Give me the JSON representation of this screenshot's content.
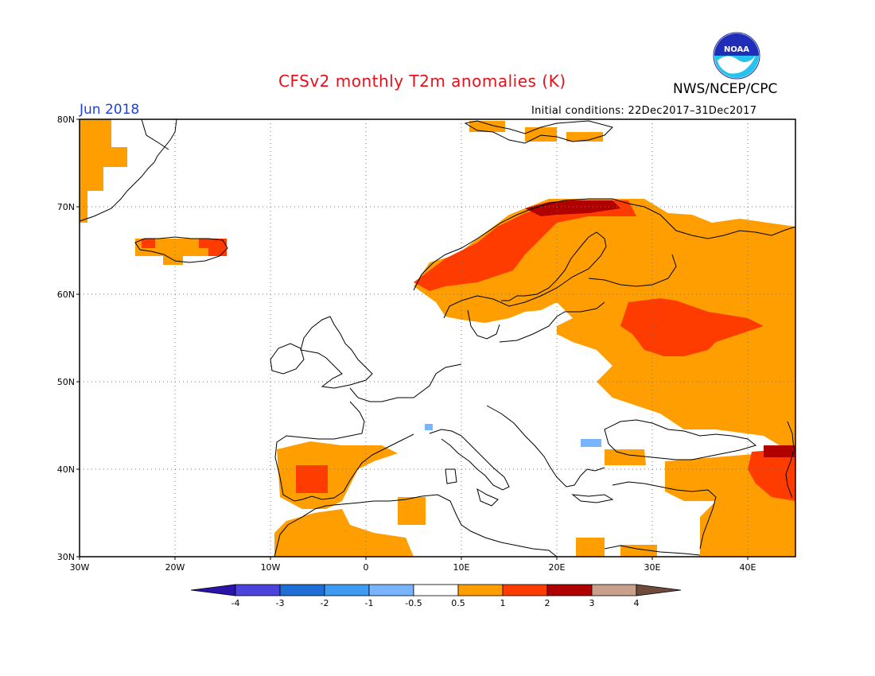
{
  "header": {
    "title": "CFSv2 monthly T2m anomalies (K)",
    "agency": "NWS/NCEP/CPC",
    "logo_text": "NOAA",
    "month": "Jun 2018",
    "initial_conditions": "Initial conditions: 22Dec2017–31Dec2017"
  },
  "map": {
    "projection": "lat-lon",
    "lon_range": [
      -30,
      45
    ],
    "lat_range": [
      30,
      80
    ],
    "lat_ticks": [
      {
        "value": 80,
        "label": "80N"
      },
      {
        "value": 70,
        "label": "70N"
      },
      {
        "value": 60,
        "label": "60N"
      },
      {
        "value": 50,
        "label": "50N"
      },
      {
        "value": 40,
        "label": "40N"
      },
      {
        "value": 30,
        "label": "30N"
      }
    ],
    "lon_ticks": [
      {
        "value": -30,
        "label": "30W"
      },
      {
        "value": -20,
        "label": "20W"
      },
      {
        "value": -10,
        "label": "10W"
      },
      {
        "value": 0,
        "label": "0"
      },
      {
        "value": 10,
        "label": "10E"
      },
      {
        "value": 20,
        "label": "20E"
      },
      {
        "value": 30,
        "label": "30E"
      },
      {
        "value": 40,
        "label": "40E"
      }
    ],
    "grid": true,
    "coastlines": true,
    "anomaly_regions": [
      {
        "class": "0.5 to 1",
        "color": "#ff9e00",
        "area": "Greenland east coast"
      },
      {
        "class": "0.5 to 1",
        "color": "#ff9e00",
        "area": "Iceland"
      },
      {
        "class": "1 to 2",
        "color": "#ff3c00",
        "area": "Iceland west and east edges"
      },
      {
        "class": "1 to 2",
        "color": "#ff3c00",
        "area": "Norwegian coast"
      },
      {
        "class": "2 to 3",
        "color": "#b00000",
        "area": "Northern Norway coast"
      },
      {
        "class": "0.5 to 1",
        "color": "#ff9e00",
        "area": "Fennoscandia and northwest Russia"
      },
      {
        "class": "1 to 2",
        "color": "#ff3c00",
        "area": "Western Russia"
      },
      {
        "class": "0.5 to 1",
        "color": "#ff9e00",
        "area": "Eastern Europe and Ukraine"
      },
      {
        "class": "0.5 to 1",
        "color": "#ff9e00",
        "area": "Iberian Peninsula"
      },
      {
        "class": "1 to 2",
        "color": "#ff3c00",
        "area": "Central Spain"
      },
      {
        "class": "0.5 to 1",
        "color": "#ff9e00",
        "area": "North Africa"
      },
      {
        "class": "0.5 to 1",
        "color": "#ff9e00",
        "area": "Anatolia and Middle East"
      },
      {
        "class": "1 to 2",
        "color": "#ff3c00",
        "area": "Eastern Turkey and Caucasus"
      },
      {
        "class": "2 to 3",
        "color": "#b00000",
        "area": "Caucasus"
      },
      {
        "class": "-1 to -0.5",
        "color": "#78b4ff",
        "area": "Western Alps and lower Danube"
      }
    ]
  },
  "colorbar": {
    "colors": [
      "#2a13a8",
      "#4a44dc",
      "#1d6fd6",
      "#3e9bf2",
      "#78b4ff",
      "#ffffff",
      "#ff9e00",
      "#ff3c00",
      "#b00000",
      "#c8a08c",
      "#704a3a"
    ],
    "labels": [
      "-4",
      "-3",
      "-2",
      "-1",
      "-0.5",
      "0.5",
      "1",
      "2",
      "3",
      "4"
    ]
  }
}
